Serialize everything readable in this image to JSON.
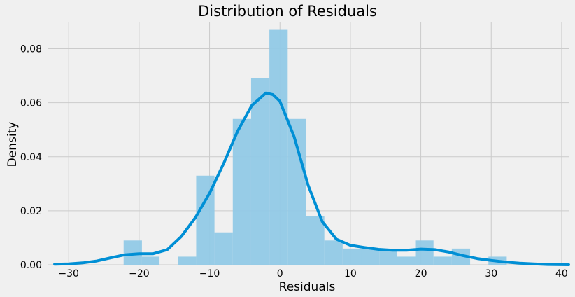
{
  "chart_data": {
    "type": "histogram",
    "title": "Distribution of Residuals",
    "xlabel": "Residuals",
    "ylabel": "Density",
    "xlim": [
      -33,
      41
    ],
    "ylim": [
      0,
      0.09
    ],
    "xticks": [
      -30,
      -20,
      -10,
      0,
      10,
      20,
      30,
      40
    ],
    "xtick_labels": [
      "−30",
      "−20",
      "−10",
      "0",
      "10",
      "20",
      "30",
      "40"
    ],
    "yticks": [
      0,
      0.02,
      0.04,
      0.06,
      0.08
    ],
    "ytick_labels": [
      "0.00",
      "0.02",
      "0.04",
      "0.06",
      "0.08"
    ],
    "grid": true,
    "bins": [
      {
        "x0": -22.2,
        "x1": -19.6,
        "density": 0.009
      },
      {
        "x0": -19.6,
        "x1": -17.1,
        "density": 0.003
      },
      {
        "x0": -17.1,
        "x1": -14.5,
        "density": 0.0
      },
      {
        "x0": -14.5,
        "x1": -11.9,
        "density": 0.003
      },
      {
        "x0": -11.9,
        "x1": -9.3,
        "density": 0.033
      },
      {
        "x0": -9.3,
        "x1": -6.7,
        "density": 0.012
      },
      {
        "x0": -6.7,
        "x1": -4.1,
        "density": 0.054
      },
      {
        "x0": -4.1,
        "x1": -1.5,
        "density": 0.069
      },
      {
        "x0": -1.5,
        "x1": 1.1,
        "density": 0.087
      },
      {
        "x0": 1.1,
        "x1": 3.7,
        "density": 0.054
      },
      {
        "x0": 3.7,
        "x1": 6.3,
        "density": 0.018
      },
      {
        "x0": 6.3,
        "x1": 8.9,
        "density": 0.009
      },
      {
        "x0": 8.9,
        "x1": 11.5,
        "density": 0.006
      },
      {
        "x0": 11.5,
        "x1": 14.1,
        "density": 0.006
      },
      {
        "x0": 14.1,
        "x1": 16.6,
        "density": 0.005
      },
      {
        "x0": 16.6,
        "x1": 19.2,
        "density": 0.003
      },
      {
        "x0": 19.2,
        "x1": 21.8,
        "density": 0.009
      },
      {
        "x0": 21.8,
        "x1": 24.4,
        "density": 0.003
      },
      {
        "x0": 24.4,
        "x1": 27.0,
        "density": 0.006
      },
      {
        "x0": 27.0,
        "x1": 29.6,
        "density": 0.0
      },
      {
        "x0": 29.6,
        "x1": 32.2,
        "density": 0.003
      }
    ],
    "kde": {
      "x": [
        -32,
        -30,
        -28,
        -26,
        -24,
        -22,
        -20,
        -18,
        -16,
        -14,
        -12,
        -10,
        -8,
        -6,
        -4,
        -2,
        -1,
        0,
        2,
        4,
        6,
        8,
        10,
        12,
        14,
        16,
        18,
        20,
        22,
        24,
        26,
        28,
        30,
        32,
        34,
        36,
        38,
        41
      ],
      "y": [
        0.0002,
        0.0003,
        0.0007,
        0.0014,
        0.0026,
        0.0037,
        0.0041,
        0.0041,
        0.0056,
        0.0105,
        0.0175,
        0.0265,
        0.0375,
        0.0495,
        0.059,
        0.0636,
        0.063,
        0.0605,
        0.0475,
        0.0295,
        0.016,
        0.0095,
        0.0072,
        0.0064,
        0.0057,
        0.0054,
        0.0054,
        0.0058,
        0.0056,
        0.0047,
        0.0034,
        0.0023,
        0.0016,
        0.001,
        0.0006,
        0.0003,
        0.0001,
        0.0
      ]
    },
    "colors": {
      "bar": "#91c9e6",
      "kde": "#008fd5",
      "grid": "#cbcbcb",
      "background": "#f0f0f0",
      "text": "#000000"
    }
  }
}
